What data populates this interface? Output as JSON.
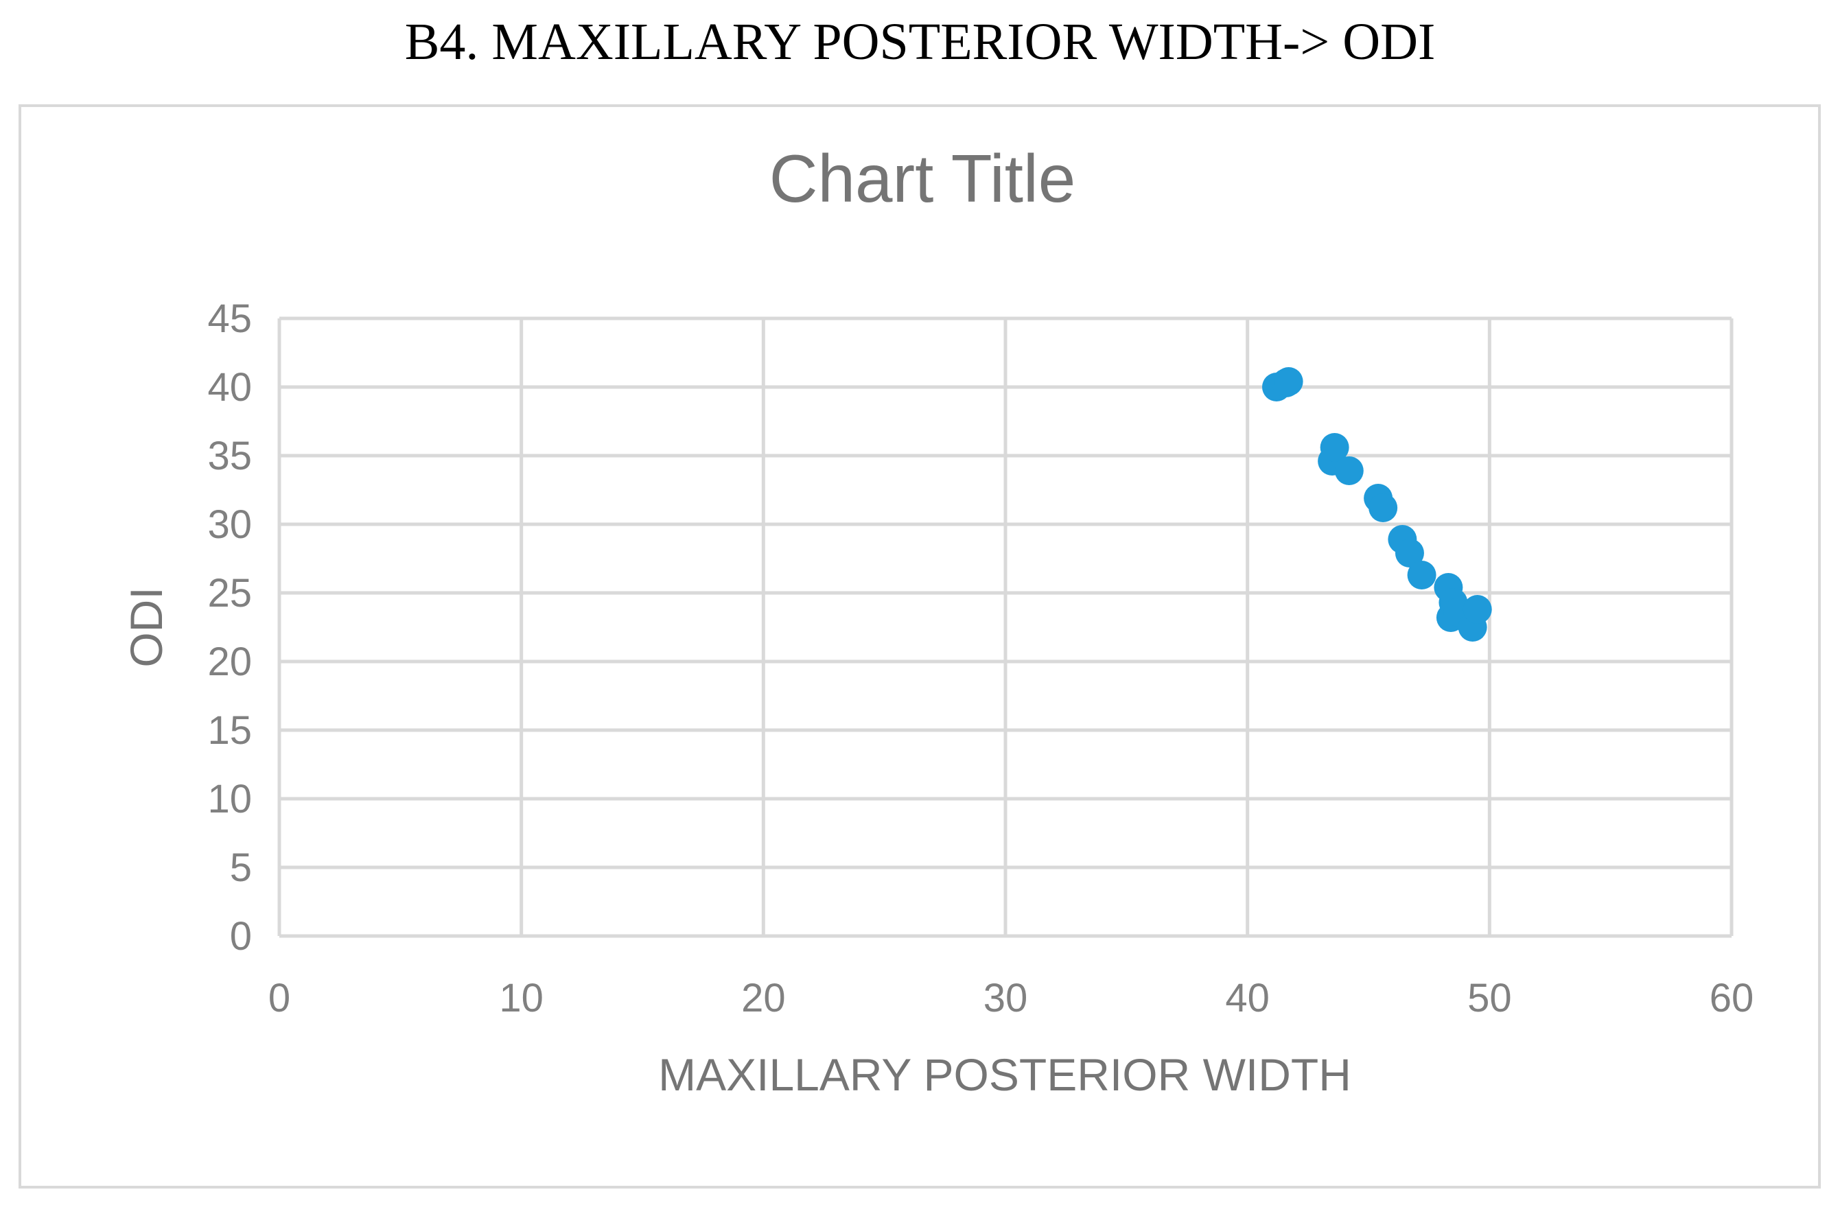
{
  "figure": {
    "heading": "B4. MAXILLARY POSTERIOR WIDTH-> ODI"
  },
  "colors": {
    "marker": "#1f9ad9",
    "grid": "#d9d9d9",
    "text": "#808080"
  },
  "chart_data": {
    "type": "scatter",
    "title": "Chart Title",
    "xlabel": "MAXILLARY POSTERIOR WIDTH",
    "ylabel": "ODI",
    "xlim": [
      0,
      60
    ],
    "ylim": [
      0,
      45
    ],
    "xticks": [
      "0",
      "10",
      "20",
      "30",
      "40",
      "50",
      "60"
    ],
    "yticks": [
      "0",
      "5",
      "10",
      "15",
      "20",
      "25",
      "30",
      "35",
      "40",
      "45"
    ],
    "grid": true,
    "legend": "none",
    "series": [
      {
        "x": [
          41.2,
          41.6,
          41.7,
          43.5,
          43.6,
          44.2,
          45.4,
          45.6,
          46.4,
          46.7,
          47.2,
          48.3,
          48.4,
          48.5,
          48.7,
          49.3,
          49.5
        ],
        "y": [
          40.0,
          40.3,
          40.4,
          34.6,
          35.6,
          33.9,
          31.9,
          31.2,
          28.9,
          27.9,
          26.3,
          25.4,
          23.2,
          24.3,
          23.6,
          22.5,
          23.8
        ]
      }
    ]
  }
}
